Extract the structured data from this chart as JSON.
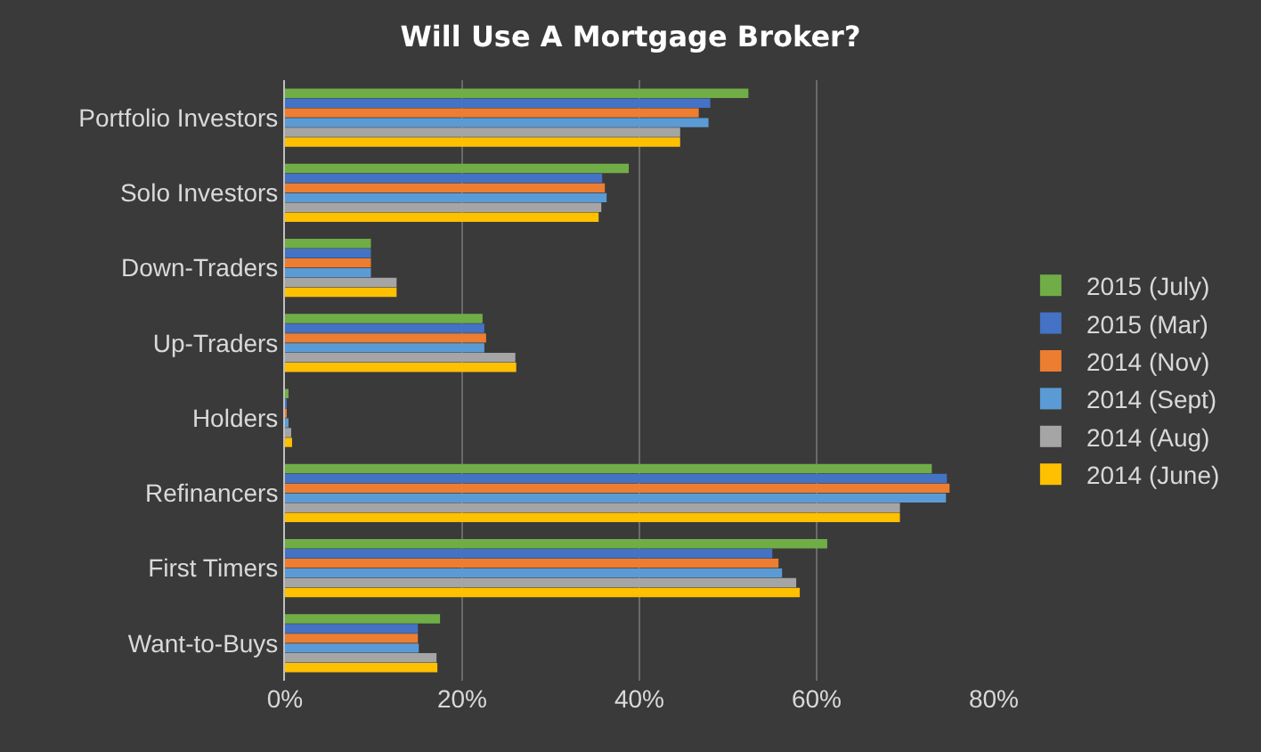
{
  "chart_data": {
    "type": "bar",
    "orientation": "horizontal",
    "title": "Will Use A Mortgage Broker?",
    "categories": [
      "Portfolio Investors",
      "Solo Investors",
      "Down-Traders",
      "Up-Traders",
      "Holders",
      "Refinancers",
      "First Timers",
      "Want-to-Buys"
    ],
    "series": [
      {
        "name": "2015 (July)",
        "color": "#70ad47",
        "values": [
          52.3,
          38.8,
          9.7,
          22.3,
          0.3,
          73.0,
          61.2,
          17.5
        ]
      },
      {
        "name": "2015 (Mar)",
        "color": "#4472c4",
        "values": [
          48.0,
          35.8,
          9.7,
          22.5,
          0.2,
          74.7,
          55.0,
          15.0
        ]
      },
      {
        "name": "2014 (Nov)",
        "color": "#ed7d31",
        "values": [
          46.7,
          36.1,
          9.7,
          22.7,
          0.2,
          75.0,
          55.7,
          15.0
        ]
      },
      {
        "name": "2014 (Sept)",
        "color": "#5b9bd5",
        "values": [
          47.8,
          36.3,
          9.7,
          22.5,
          0.3,
          74.6,
          56.1,
          15.1
        ]
      },
      {
        "name": "2014 (Aug)",
        "color": "#a5a5a5",
        "values": [
          44.6,
          35.7,
          12.6,
          26.0,
          0.7,
          69.4,
          57.7,
          17.1
        ]
      },
      {
        "name": "2014 (June)",
        "color": "#ffc000",
        "values": [
          44.6,
          35.4,
          12.6,
          26.1,
          0.8,
          69.4,
          58.1,
          17.2
        ]
      }
    ],
    "xlim": [
      0,
      80
    ],
    "xticks": [
      {
        "value": 0,
        "label": "0%"
      },
      {
        "value": 20,
        "label": "20%"
      },
      {
        "value": 40,
        "label": "40%"
      },
      {
        "value": 60,
        "label": "60%"
      },
      {
        "value": 80,
        "label": "80%"
      }
    ],
    "grid": "x",
    "legend": "right"
  }
}
